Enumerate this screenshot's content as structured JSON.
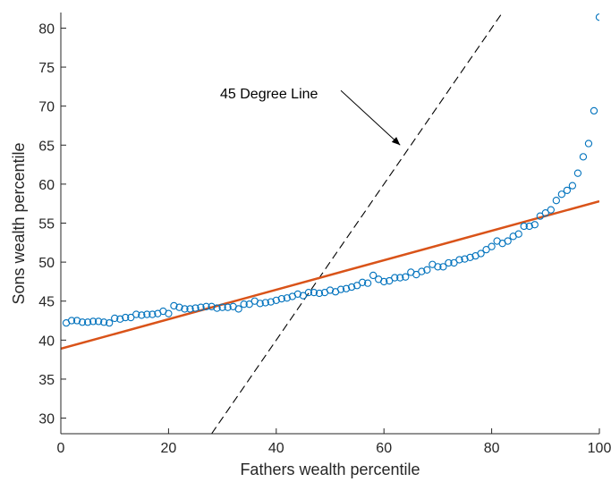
{
  "chart_data": {
    "type": "scatter",
    "title": "",
    "xlabel": "Fathers wealth percentile",
    "ylabel": "Sons wealth percentile",
    "xlim": [
      0,
      100
    ],
    "ylim": [
      28,
      82
    ],
    "xticks": [
      0,
      20,
      40,
      60,
      80,
      100
    ],
    "yticks": [
      30,
      35,
      40,
      45,
      50,
      55,
      60,
      65,
      70,
      75,
      80
    ],
    "grid": false,
    "colors": {
      "points": "#0072BD",
      "fit_line": "#D95319",
      "reference_line": "#000000",
      "axes": "#262626"
    },
    "series": [
      {
        "type": "scatter",
        "marker": "circle-open",
        "x": [
          1,
          2,
          3,
          4,
          5,
          6,
          7,
          8,
          9,
          10,
          11,
          12,
          13,
          14,
          15,
          16,
          17,
          18,
          19,
          20,
          21,
          22,
          23,
          24,
          25,
          26,
          27,
          28,
          29,
          30,
          31,
          32,
          33,
          34,
          35,
          36,
          37,
          38,
          39,
          40,
          41,
          42,
          43,
          44,
          45,
          46,
          47,
          48,
          49,
          50,
          51,
          52,
          53,
          54,
          55,
          56,
          57,
          58,
          59,
          60,
          61,
          62,
          63,
          64,
          65,
          66,
          67,
          68,
          69,
          70,
          71,
          72,
          73,
          74,
          75,
          76,
          77,
          78,
          79,
          80,
          81,
          82,
          83,
          84,
          85,
          86,
          87,
          88,
          89,
          90,
          91,
          92,
          93,
          94,
          95,
          96,
          97,
          98,
          99,
          100
        ],
        "y": [
          42.2,
          42.5,
          42.5,
          42.3,
          42.3,
          42.4,
          42.4,
          42.3,
          42.2,
          42.8,
          42.7,
          42.9,
          42.9,
          43.3,
          43.2,
          43.3,
          43.3,
          43.4,
          43.7,
          43.4,
          44.4,
          44.2,
          44.0,
          44.0,
          44.1,
          44.2,
          44.3,
          44.3,
          44.1,
          44.2,
          44.2,
          44.3,
          44.0,
          44.6,
          44.6,
          45.0,
          44.7,
          44.8,
          44.9,
          45.1,
          45.3,
          45.4,
          45.6,
          45.9,
          45.7,
          46.1,
          46.1,
          46.0,
          46.1,
          46.4,
          46.2,
          46.5,
          46.6,
          46.8,
          47.0,
          47.4,
          47.3,
          48.3,
          47.8,
          47.5,
          47.6,
          48.0,
          48.0,
          48.1,
          48.7,
          48.4,
          48.8,
          49.0,
          49.7,
          49.4,
          49.4,
          49.9,
          49.9,
          50.3,
          50.4,
          50.6,
          50.8,
          51.1,
          51.6,
          52.0,
          52.7,
          52.4,
          52.7,
          53.3,
          53.6,
          54.6,
          54.6,
          54.8,
          55.9,
          56.3,
          56.7,
          57.9,
          58.7,
          59.2,
          59.8,
          61.4,
          63.5,
          65.2,
          69.4,
          81.4
        ]
      },
      {
        "type": "line",
        "x": [
          0,
          100
        ],
        "y": [
          38.9,
          57.8
        ]
      },
      {
        "type": "line",
        "style": "dashed",
        "x": [
          28,
          82
        ],
        "y": [
          28,
          82
        ]
      }
    ],
    "annotations": [
      {
        "text": "45 Degree Line",
        "arrow_from": [
          52,
          72
        ],
        "arrow_to": [
          63,
          65
        ]
      }
    ]
  }
}
